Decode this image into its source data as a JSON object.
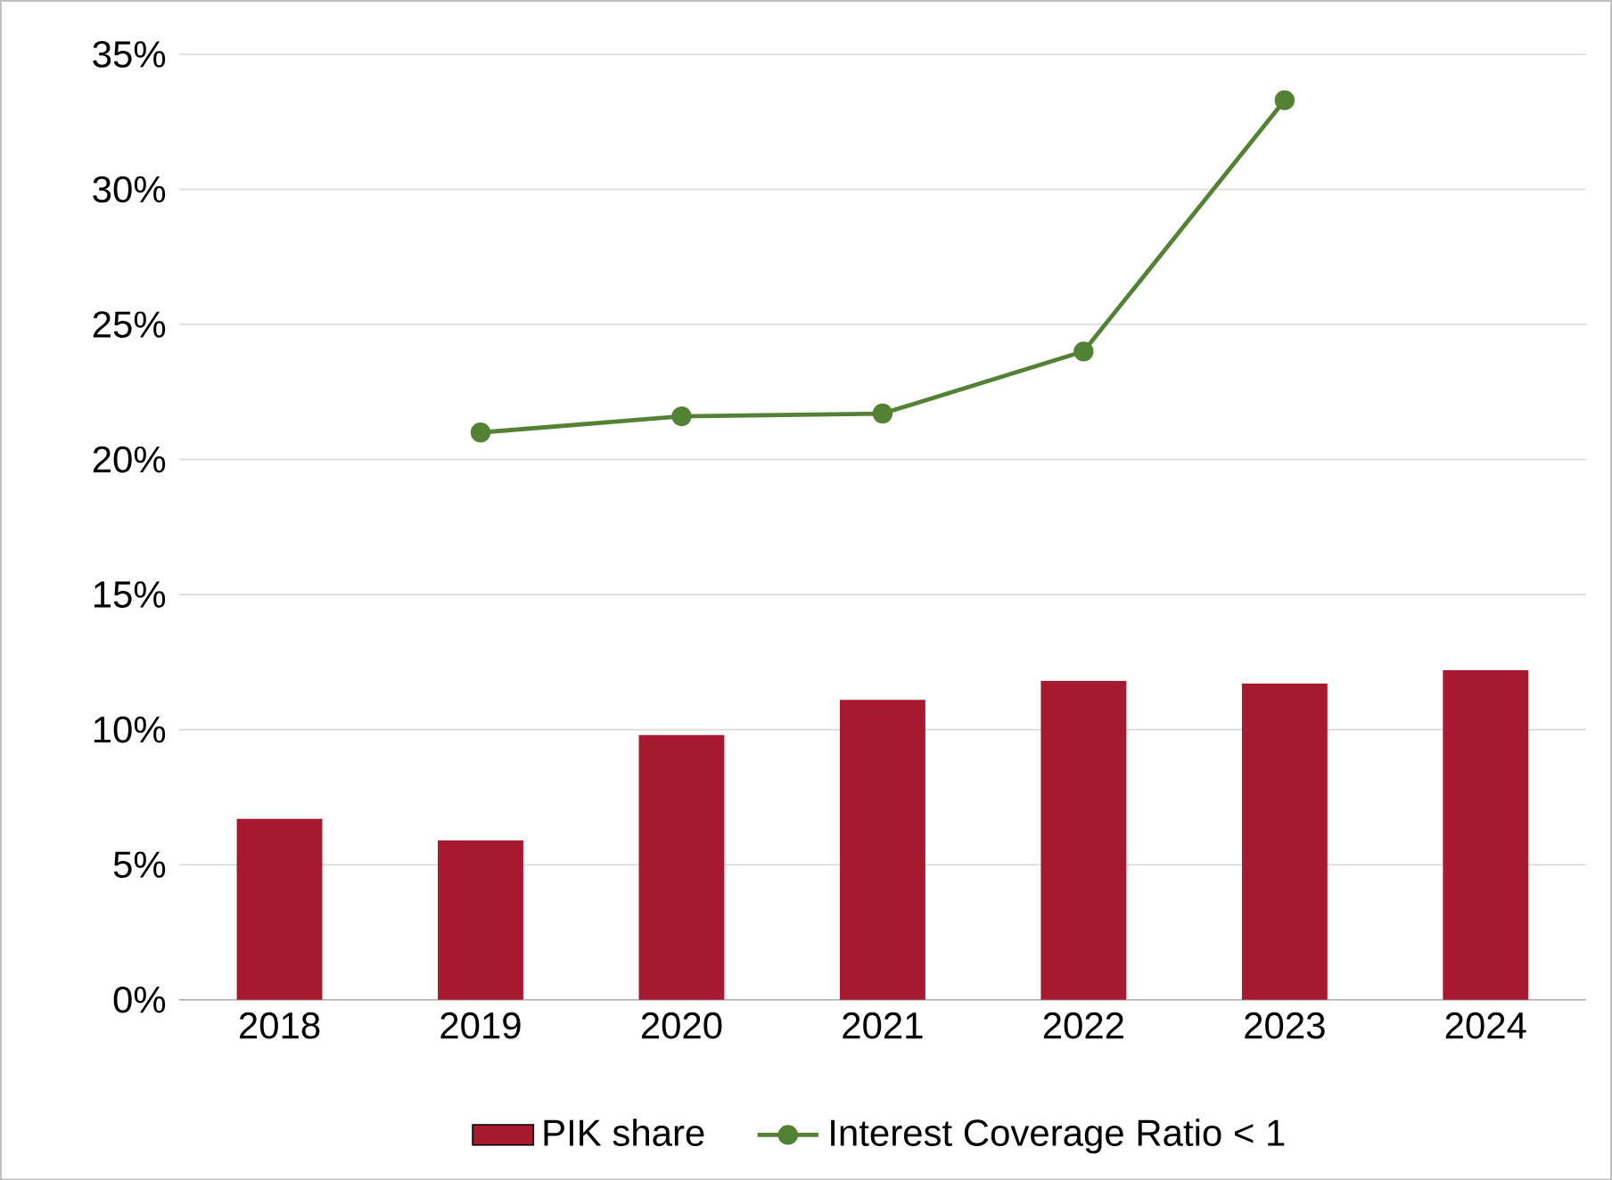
{
  "chart_data": {
    "type": "bar",
    "categories": [
      "2018",
      "2019",
      "2020",
      "2021",
      "2022",
      "2023",
      "2024"
    ],
    "series": [
      {
        "name": "PIK share",
        "color": "#a6192e",
        "values": [
          6.7,
          5.9,
          9.8,
          11.1,
          11.8,
          11.7,
          12.2
        ]
      },
      {
        "name": "Interest Coverage Ratio < 1",
        "type": "line",
        "color": "#548235",
        "marker": "circle",
        "values": [
          null,
          21.0,
          21.6,
          21.7,
          24.0,
          33.3,
          null
        ]
      }
    ],
    "ylim": [
      0,
      35
    ],
    "yticks": [
      {
        "value": 0,
        "label": "0%"
      },
      {
        "value": 5,
        "label": "5%"
      },
      {
        "value": 10,
        "label": "10%"
      },
      {
        "value": 15,
        "label": "15%"
      },
      {
        "value": 20,
        "label": "20%"
      },
      {
        "value": 25,
        "label": "25%"
      },
      {
        "value": 30,
        "label": "30%"
      },
      {
        "value": 35,
        "label": "35%"
      }
    ],
    "grid": "y",
    "legend": "bottom"
  }
}
